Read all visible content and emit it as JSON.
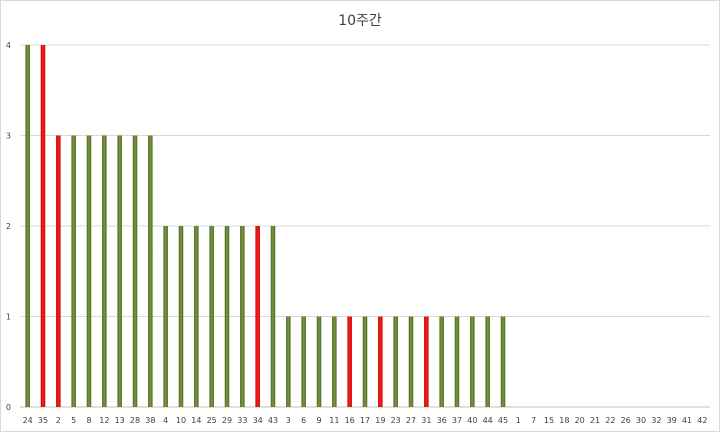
{
  "chart_data": {
    "type": "bar",
    "title": "10주간",
    "xlabel": "",
    "ylabel": "",
    "ylim": [
      0,
      4
    ],
    "yticks": [
      0,
      1,
      2,
      3,
      4
    ],
    "grid": true,
    "colors": {
      "green": "#4f6228",
      "green_highlight": "#9bbb59",
      "red": "#e31a1c",
      "grid": "#d9d9d9",
      "axis": "#bfbfbf"
    },
    "categories": [
      "24",
      "35",
      "2",
      "5",
      "8",
      "12",
      "13",
      "28",
      "38",
      "4",
      "10",
      "14",
      "25",
      "29",
      "33",
      "34",
      "43",
      "3",
      "6",
      "9",
      "11",
      "16",
      "17",
      "19",
      "23",
      "27",
      "31",
      "36",
      "37",
      "40",
      "44",
      "45",
      "1",
      "7",
      "15",
      "18",
      "20",
      "21",
      "22",
      "26",
      "30",
      "32",
      "39",
      "41",
      "42"
    ],
    "values": [
      4,
      4,
      3,
      3,
      3,
      3,
      3,
      3,
      3,
      2,
      2,
      2,
      2,
      2,
      2,
      2,
      2,
      1,
      1,
      1,
      1,
      1,
      1,
      1,
      1,
      1,
      1,
      1,
      1,
      1,
      1,
      1,
      0,
      0,
      0,
      0,
      0,
      0,
      0,
      0,
      0,
      0,
      0,
      0,
      0
    ],
    "bar_colors": [
      "green",
      "red",
      "red",
      "green",
      "green",
      "green",
      "green",
      "green",
      "green",
      "green",
      "green",
      "green",
      "green",
      "green",
      "green",
      "red",
      "green",
      "green",
      "green",
      "green",
      "green",
      "red",
      "green",
      "red",
      "green",
      "green",
      "red",
      "green",
      "green",
      "green",
      "green",
      "green",
      "green",
      "green",
      "green",
      "green",
      "green",
      "green",
      "green",
      "green",
      "green",
      "green",
      "green",
      "green",
      "green"
    ]
  }
}
